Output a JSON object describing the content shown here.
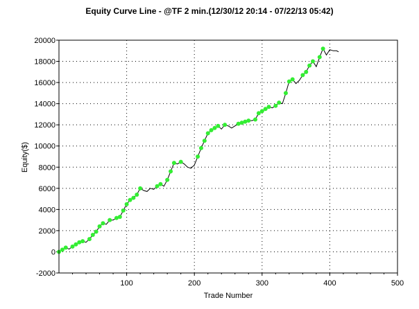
{
  "chart_data": {
    "type": "line",
    "title": "Equity Curve Line - @TF 2 min.(12/30/12 20:14 - 07/22/13 05:42)",
    "xlabel": "Trade Number",
    "ylabel": "Equity($)",
    "xlim": [
      0,
      500
    ],
    "ylim": [
      -2000,
      20000
    ],
    "x_ticks": [
      100,
      200,
      300,
      400,
      500
    ],
    "y_ticks": [
      -2000,
      0,
      2000,
      4000,
      6000,
      8000,
      10000,
      12000,
      14000,
      16000,
      18000,
      20000
    ],
    "grid": "dotted",
    "legend": "none",
    "colors": {
      "line": "#000000",
      "new_high_marker": "#33ee33",
      "grid": "#000000",
      "axis": "#000000"
    },
    "series": [
      {
        "x": [
          0,
          5,
          10,
          15,
          20,
          25,
          30,
          35,
          40,
          45,
          50,
          55,
          60,
          65,
          70,
          75,
          80,
          85,
          90,
          95,
          100,
          105,
          110,
          115,
          120,
          125,
          130,
          135,
          140,
          145,
          150,
          155,
          160,
          165,
          170,
          175,
          180,
          185,
          190,
          195,
          200,
          205,
          210,
          215,
          220,
          225,
          230,
          235,
          240,
          245,
          250,
          255,
          260,
          265,
          270,
          275,
          280,
          285,
          290,
          295,
          300,
          305,
          310,
          315,
          320,
          325,
          330,
          335,
          340,
          345,
          350,
          355,
          360,
          365,
          370,
          375,
          380,
          385,
          390,
          395,
          400,
          405,
          410,
          413
        ],
        "y": [
          0,
          200,
          400,
          250,
          500,
          700,
          900,
          1000,
          900,
          1200,
          1600,
          1900,
          2400,
          2700,
          2600,
          3000,
          3000,
          3200,
          3300,
          3900,
          4500,
          4900,
          5100,
          5400,
          6000,
          5800,
          5700,
          6000,
          5900,
          6200,
          6400,
          6200,
          6800,
          7600,
          8400,
          8300,
          8500,
          8300,
          8000,
          7900,
          8200,
          9000,
          9800,
          10500,
          11200,
          11500,
          11700,
          11900,
          11600,
          12000,
          11900,
          11700,
          11900,
          12100,
          12200,
          12300,
          12400,
          12400,
          12500,
          13100,
          13300,
          13500,
          13700,
          13600,
          13800,
          14100,
          14000,
          15000,
          16100,
          16300,
          15900,
          16200,
          16700,
          17000,
          17600,
          18000,
          17500,
          18400,
          19200,
          18600,
          19100,
          19000,
          19000,
          18900
        ],
        "new_high": [
          true,
          true,
          true,
          false,
          true,
          true,
          true,
          true,
          false,
          true,
          true,
          true,
          true,
          true,
          false,
          true,
          false,
          true,
          true,
          true,
          true,
          true,
          true,
          true,
          true,
          false,
          false,
          false,
          false,
          true,
          true,
          false,
          true,
          true,
          true,
          false,
          true,
          false,
          false,
          false,
          false,
          true,
          true,
          true,
          true,
          true,
          true,
          true,
          false,
          true,
          false,
          false,
          false,
          true,
          true,
          true,
          true,
          false,
          true,
          true,
          true,
          true,
          true,
          false,
          true,
          true,
          false,
          true,
          true,
          true,
          false,
          false,
          true,
          true,
          true,
          true,
          false,
          true,
          true,
          false,
          false,
          false,
          false,
          false
        ]
      }
    ]
  }
}
